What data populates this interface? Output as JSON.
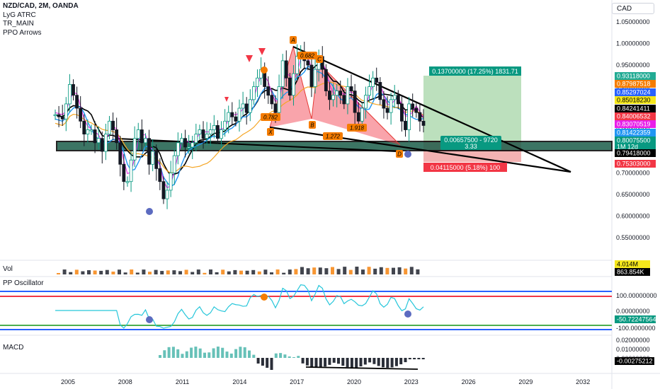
{
  "header": {
    "symbol_line": "NZD/CAD, 2M, OANDA",
    "indicators": [
      "LyG ATRC",
      "TR_MAIN",
      "PPO Arrows"
    ],
    "currency": "CAD"
  },
  "panels": {
    "volume": "Vol",
    "oscillator": "PP Oscillator",
    "macd": "MACD"
  },
  "chart_data": {
    "type": "candlestick",
    "x_ticks": [
      "2005",
      "2008",
      "2011",
      "2014",
      "2017",
      "2020",
      "2023",
      "2026",
      "2029",
      "2032"
    ],
    "price_ticks": [
      "1.05000000",
      "1.00000000",
      "0.95000000",
      "0.90000000",
      "0.85000000",
      "0.80000000",
      "0.75000000",
      "0.70000000",
      "0.65000000",
      "0.60000000",
      "0.55000000"
    ],
    "price_tags": [
      {
        "text": "0.93118000",
        "color": "#22ab94"
      },
      {
        "text": "0.87987518",
        "color": "#f57c00"
      },
      {
        "text": "0.85297024",
        "color": "#2962ff"
      },
      {
        "text": "0.85018230",
        "color": "#f5e71c"
      },
      {
        "text": "0.84241411",
        "color": "#000000"
      },
      {
        "text": "0.84006532",
        "color": "#f23645"
      },
      {
        "text": "0.83070519",
        "color": "#e91ee9"
      },
      {
        "text": "0.81422359",
        "color": "#2196f3"
      },
      {
        "text": "0.80075500",
        "color": "#089981"
      },
      {
        "text": "1M 12d",
        "color": "#089981"
      },
      {
        "text": "0.79418000",
        "color": "#000000"
      },
      {
        "text": "0.75303000",
        "color": "#f23645"
      }
    ],
    "harmonic_labels": [
      "X",
      "A",
      "B",
      "C",
      "D"
    ],
    "fib_ratios": [
      "0.682",
      "0.782",
      "1.272",
      "1.918"
    ],
    "position": {
      "target_text": "0.13700000 (17.25%) 1831.71",
      "entry_text": "0.00657500 - 9720",
      "ratio_text": "3.33",
      "stop_text": "0.04115000 (5.18%) 100"
    },
    "volume_tags": [
      {
        "text": "4.014M",
        "color": "#f5e71c"
      },
      {
        "text": "863.854K",
        "color": "#000000"
      }
    ],
    "oscillator_ticks": [
      "100.00000000",
      "0.00000000",
      "-100.0000000"
    ],
    "oscillator_tag": {
      "text": "-50.72247564",
      "color": "#089981"
    },
    "macd_ticks": [
      "0.02000000",
      "0.01000000",
      "0.00000000"
    ],
    "macd_tag": {
      "text": "-0.00275212",
      "color": "#000000"
    },
    "ohlc_samples": [
      0.835,
      0.83,
      0.825,
      0.86,
      0.905,
      0.88,
      0.85,
      0.82,
      0.79,
      0.8,
      0.8,
      0.77,
      0.78,
      0.75,
      0.79,
      0.82,
      0.8,
      0.77,
      0.72,
      0.68,
      0.68,
      0.73,
      0.78,
      0.8,
      0.77,
      0.78,
      0.72,
      0.75,
      0.71,
      0.68,
      0.64,
      0.66,
      0.7,
      0.74,
      0.77,
      0.78,
      0.76,
      0.76,
      0.77,
      0.79,
      0.8,
      0.78,
      0.79,
      0.8,
      0.81,
      0.78,
      0.8,
      0.82,
      0.84,
      0.83,
      0.82,
      0.85,
      0.86,
      0.84,
      0.87,
      0.9,
      0.92,
      0.94,
      0.9,
      0.88,
      0.86,
      0.84,
      0.9,
      0.96,
      0.92,
      0.88,
      0.93,
      0.97,
      0.98,
      0.96,
      0.95,
      0.9,
      0.94,
      0.97,
      0.94,
      0.89,
      0.87,
      0.88,
      0.89,
      0.88,
      0.86,
      0.9,
      0.89,
      0.84,
      0.82,
      0.85,
      0.88,
      0.9,
      0.92,
      0.91,
      0.87,
      0.85,
      0.84,
      0.87,
      0.88,
      0.86,
      0.82,
      0.8,
      0.86,
      0.85,
      0.84,
      0.82,
      0.81
    ]
  }
}
